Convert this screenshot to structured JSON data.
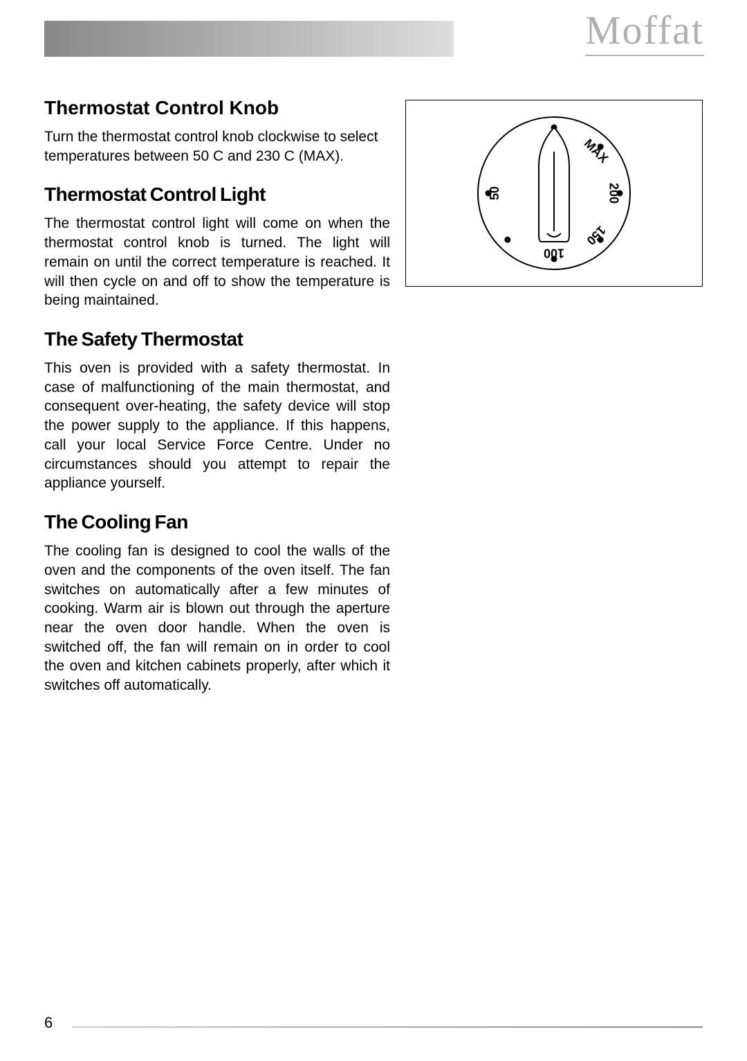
{
  "brand": "Moffat",
  "page_number": "6",
  "sections": [
    {
      "heading": "Thermostat Control Knob",
      "heading_class": "first",
      "body": "Turn the thermostat control knob clockwise to select temperatures between 50 C and 230 C (MAX).",
      "body_class": ""
    },
    {
      "heading": "Thermostat Control Light",
      "heading_class": "tight",
      "body": "The thermostat control light will come on when  the thermostat control knob is turned. The light will remain on until the correct temperature is reached. It will then cycle on and off to show the temperature is being maintained.",
      "body_class": "justify"
    },
    {
      "heading": "The Safety Thermostat",
      "heading_class": "tight",
      "body": "This oven is provided with a safety thermostat. In case of malfunctioning of the main thermostat, and consequent over-heating, the safety device will stop the power supply to the appliance. If this happens, call your local Service Force Centre. Under no circumstances should you attempt to repair the appliance yourself.",
      "body_class": "justify"
    },
    {
      "heading": "The Cooling Fan",
      "heading_class": "tight",
      "body": "The cooling fan is designed to cool the walls of the oven and the components of the oven itself. The fan switches on automatically after a few minutes of cooking. Warm air is blown out through the aperture near the oven door handle. When the oven is switched off, the fan will remain on in order to cool the oven and kitchen cabinets properly, after which it switches off automatically.",
      "body_class": "justify"
    }
  ],
  "knob": {
    "dial_radius": 110,
    "label_radius": 85,
    "dot_radius": 95,
    "positions": [
      {
        "angle": 0,
        "label": "",
        "dot": true,
        "extra": false
      },
      {
        "angle": 45,
        "label": "MAX",
        "dot": true,
        "extra": false
      },
      {
        "angle": 90,
        "label": "200",
        "dot": true,
        "extra": false
      },
      {
        "angle": 135,
        "label": "150",
        "dot": true,
        "extra": false
      },
      {
        "angle": 180,
        "label": "100",
        "dot": true,
        "extra": false
      },
      {
        "angle": 225,
        "label": "",
        "dot": true,
        "extra": false
      },
      {
        "angle": 270,
        "label": "50",
        "dot": true,
        "extra": false
      },
      {
        "angle": 315,
        "label": "",
        "dot": false,
        "extra": false
      }
    ],
    "colors": {
      "stroke": "#000000",
      "fill": "#ffffff",
      "dot": "#000000",
      "text": "#000000"
    },
    "font_size": 18,
    "font_weight": "bold"
  }
}
